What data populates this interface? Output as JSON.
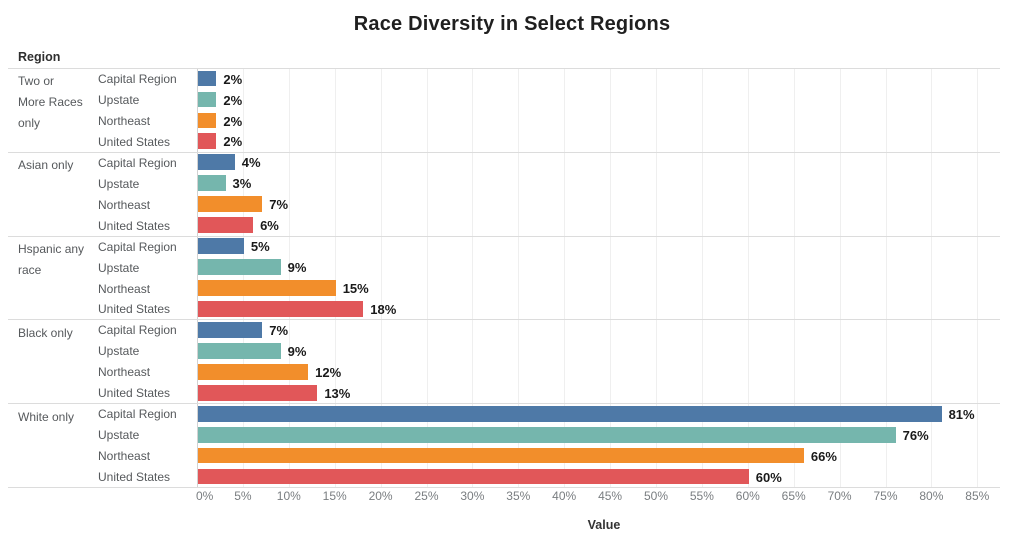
{
  "chart": {
    "title": "Race Diversity in Select Regions",
    "row_header": "Region",
    "xlabel": "Value"
  },
  "chart_data": {
    "type": "bar",
    "orientation": "horizontal",
    "title": "Race Diversity in Select Regions",
    "row_header": "Region",
    "xlabel": "Value",
    "xlim": [
      0,
      85
    ],
    "tick_step": 5,
    "tick_suffix": "%",
    "value_suffix": "%",
    "grid": true,
    "legend": "none",
    "categories": [
      "Two or More Races only",
      "Asian only",
      "Hspanic any race",
      "Black only",
      "White only"
    ],
    "category_label_lines": [
      [
        "Two or",
        "More Races",
        "only"
      ],
      [
        "Asian only"
      ],
      [
        "Hspanic any",
        "race"
      ],
      [
        "Black only"
      ],
      [
        "White only"
      ]
    ],
    "series": [
      {
        "name": "Capital Region",
        "color": "#4e79a7",
        "values": [
          2,
          4,
          5,
          7,
          81
        ]
      },
      {
        "name": "Upstate",
        "color": "#75b6ad",
        "values": [
          2,
          3,
          9,
          9,
          76
        ]
      },
      {
        "name": "Northeast",
        "color": "#f28e2b",
        "values": [
          2,
          7,
          15,
          12,
          66
        ]
      },
      {
        "name": "United States",
        "color": "#e15759",
        "values": [
          2,
          6,
          18,
          13,
          60
        ]
      }
    ],
    "value_labels": [
      [
        "2%",
        "2%",
        "2%",
        "2%"
      ],
      [
        "4%",
        "3%",
        "7%",
        "6%"
      ],
      [
        "5%",
        "9%",
        "15%",
        "18%"
      ],
      [
        "7%",
        "9%",
        "12%",
        "13%"
      ],
      [
        "81%",
        "76%",
        "66%",
        "60%"
      ]
    ],
    "tick_labels": [
      "0%",
      "5%",
      "10%",
      "15%",
      "20%",
      "25%",
      "30%",
      "35%",
      "40%",
      "45%",
      "50%",
      "55%",
      "60%",
      "65%",
      "70%",
      "75%",
      "80%",
      "85%"
    ]
  }
}
